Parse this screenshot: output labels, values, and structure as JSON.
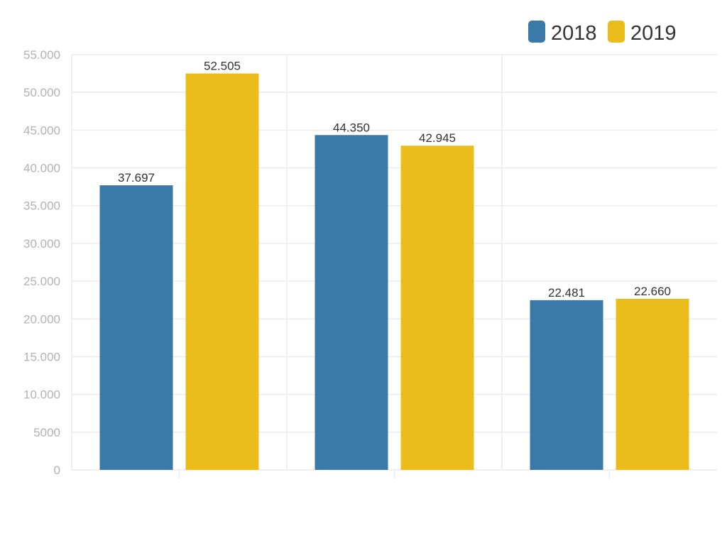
{
  "chart_data": {
    "type": "bar",
    "title": "",
    "xlabel": "",
    "ylabel": "",
    "categories": [
      "",
      "",
      ""
    ],
    "series": [
      {
        "name": "2018",
        "color": "#3a79a8",
        "values": [
          37697,
          44350,
          22481
        ],
        "labels": [
          "37.697",
          "44.350",
          "22.481"
        ]
      },
      {
        "name": "2019",
        "color": "#ebbd1a",
        "values": [
          52505,
          42945,
          22660
        ],
        "labels": [
          "52.505",
          "42.945",
          "22.660"
        ]
      }
    ],
    "ylim": [
      0,
      55000
    ],
    "yticks": [
      0,
      5000,
      10000,
      15000,
      20000,
      25000,
      30000,
      35000,
      40000,
      45000,
      50000,
      55000
    ],
    "ytick_labels": [
      "0",
      "5000",
      "10.000",
      "15.000",
      "20.000",
      "25.000",
      "30.000",
      "35.000",
      "40.000",
      "45.000",
      "50.000",
      "55.000"
    ],
    "grid": true,
    "legend_position": "top-right"
  }
}
